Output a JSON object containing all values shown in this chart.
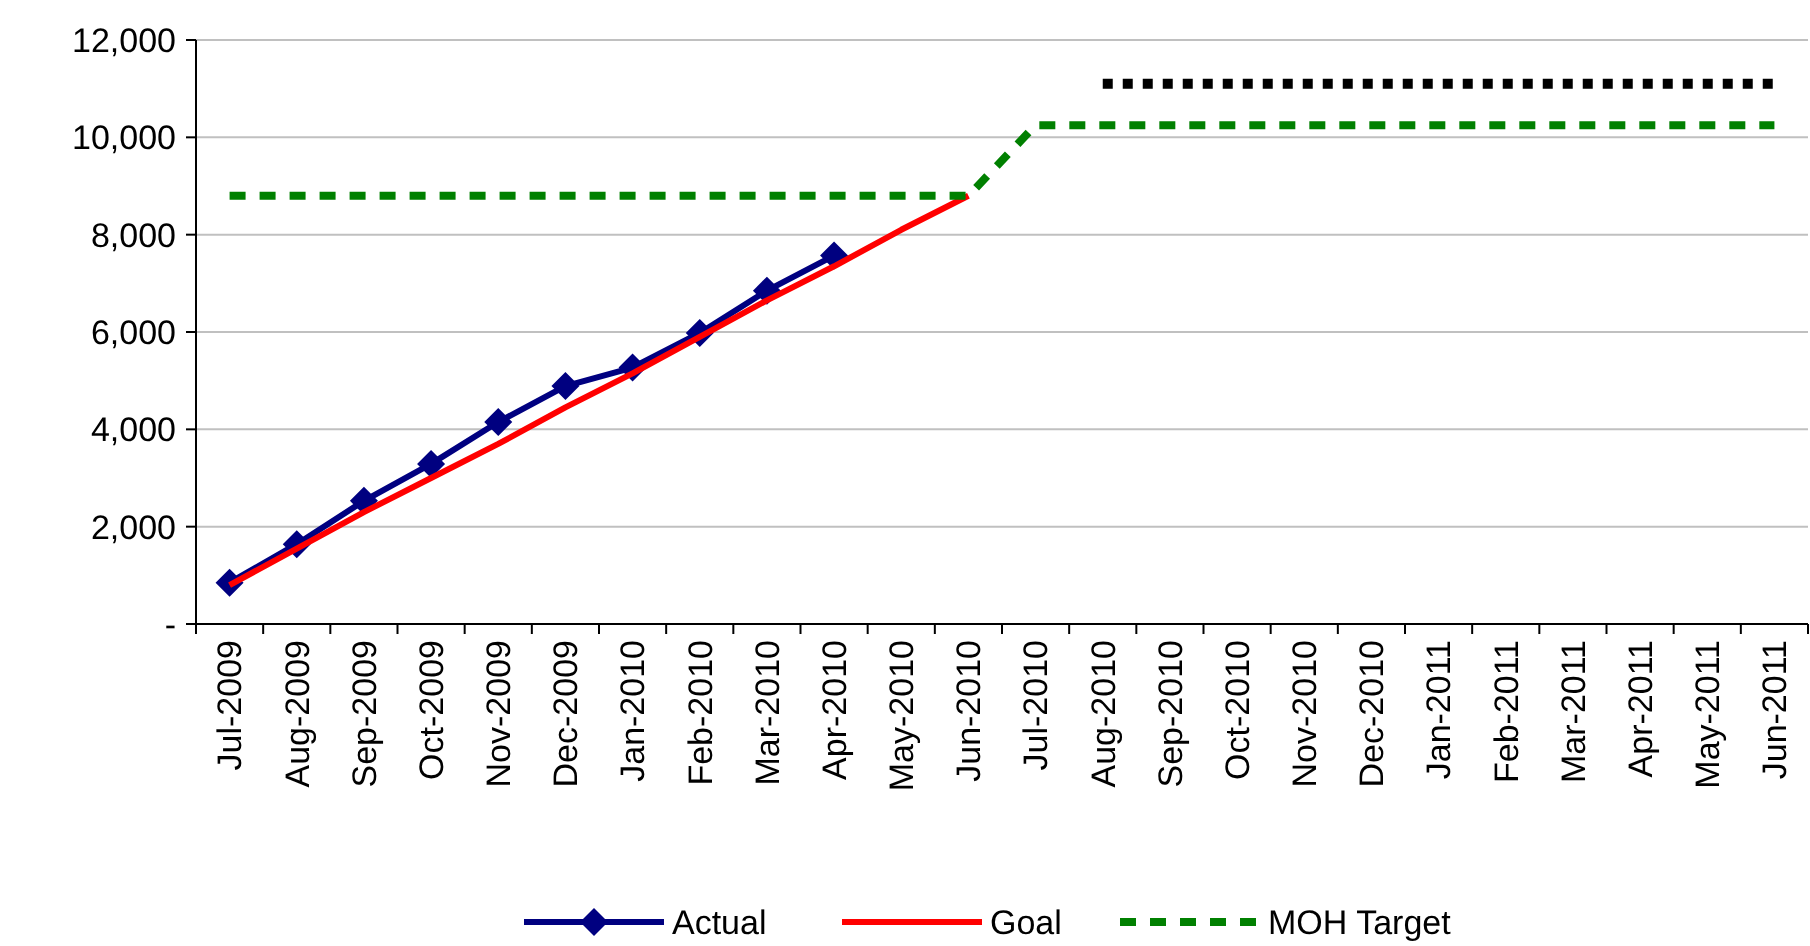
{
  "chart_data": {
    "type": "line",
    "categories": [
      "Jul-2009",
      "Aug-2009",
      "Sep-2009",
      "Oct-2009",
      "Nov-2009",
      "Dec-2009",
      "Jan-2010",
      "Feb-2010",
      "Mar-2010",
      "Apr-2010",
      "May-2010",
      "Jun-2010",
      "Jul-2010",
      "Aug-2010",
      "Sep-2010",
      "Oct-2010",
      "Nov-2010",
      "Dec-2010",
      "Jan-2011",
      "Feb-2011",
      "Mar-2011",
      "Apr-2011",
      "May-2011",
      "Jun-2011"
    ],
    "series": [
      {
        "name": "Actual",
        "color": "#000080",
        "marker": "diamond",
        "line_style": "solid",
        "values": [
          850,
          1640,
          2530,
          3290,
          4150,
          4890,
          5270,
          5980,
          6850,
          7570,
          null,
          null,
          null,
          null,
          null,
          null,
          null,
          null,
          null,
          null,
          null,
          null,
          null,
          null
        ]
      },
      {
        "name": "Goal",
        "color": "#ff0000",
        "marker": "none",
        "line_style": "solid",
        "values": [
          800,
          1550,
          2300,
          3000,
          3700,
          4450,
          5150,
          5900,
          6650,
          7350,
          8100,
          8800,
          null,
          null,
          null,
          null,
          null,
          null,
          null,
          null,
          null,
          null,
          null,
          null
        ]
      },
      {
        "name": "MOH Target",
        "color": "#008000",
        "marker": "none",
        "line_style": "dashed",
        "values": [
          8800,
          8800,
          8800,
          8800,
          8800,
          8800,
          8800,
          8800,
          8800,
          8800,
          8800,
          8800,
          10250,
          10250,
          10250,
          10250,
          10250,
          10250,
          10250,
          10250,
          10250,
          10250,
          10250,
          10250
        ]
      },
      {
        "color": "#000000",
        "marker": "none",
        "line_style": "dotted",
        "values": [
          null,
          null,
          null,
          null,
          null,
          null,
          null,
          null,
          null,
          null,
          null,
          null,
          null,
          11100,
          11100,
          11100,
          11100,
          11100,
          11100,
          11100,
          11100,
          11100,
          11100,
          11100
        ]
      }
    ],
    "ylim": [
      0,
      12000
    ],
    "yticks": [
      {
        "value": 0,
        "label": "-"
      },
      {
        "value": 2000,
        "label": "2,000"
      },
      {
        "value": 4000,
        "label": "4,000"
      },
      {
        "value": 6000,
        "label": "6,000"
      },
      {
        "value": 8000,
        "label": "8,000"
      },
      {
        "value": 10000,
        "label": "10,000"
      },
      {
        "value": 12000,
        "label": "12,000"
      }
    ],
    "grid": "y",
    "legend": "bottom"
  }
}
